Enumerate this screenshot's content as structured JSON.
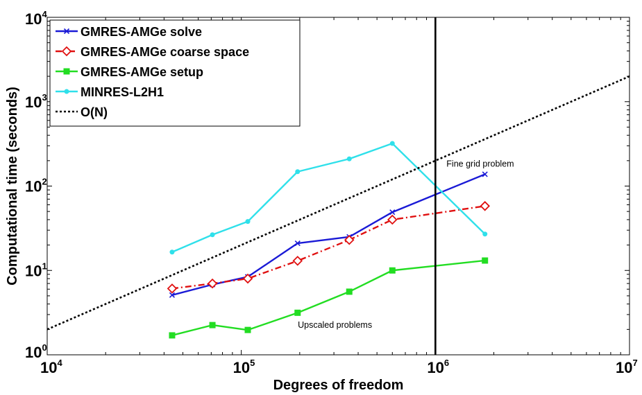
{
  "chart_data": {
    "type": "line",
    "xscale": "log",
    "yscale": "log",
    "xlim": [
      10000,
      10000000
    ],
    "ylim": [
      1,
      10000
    ],
    "xlabel": "Degrees of freedom",
    "ylabel": "Computational time (seconds)",
    "grid": false,
    "legend_position": "top-left",
    "x_ticks": [
      {
        "base": "10",
        "exp": "4",
        "value": 10000
      },
      {
        "base": "10",
        "exp": "5",
        "value": 100000
      },
      {
        "base": "10",
        "exp": "6",
        "value": 1000000
      },
      {
        "base": "10",
        "exp": "7",
        "value": 10000000
      }
    ],
    "y_ticks": [
      {
        "base": "10",
        "exp": "0",
        "value": 1
      },
      {
        "base": "10",
        "exp": "1",
        "value": 10
      },
      {
        "base": "10",
        "exp": "2",
        "value": 100
      },
      {
        "base": "10",
        "exp": "3",
        "value": 1000
      },
      {
        "base": "10",
        "exp": "4",
        "value": 10000
      }
    ],
    "series": [
      {
        "name": "GMRES-AMGe solve",
        "color": "#1a1ad6",
        "marker": "x",
        "dash": "solid",
        "x": [
          44000,
          71000,
          108000,
          195000,
          360000,
          600000,
          1800000
        ],
        "y": [
          5.1,
          6.8,
          8.4,
          21,
          25,
          49,
          138
        ]
      },
      {
        "name": "GMRES-AMGe coarse space",
        "color": "#e01010",
        "marker": "diamond",
        "dash": "dashdot",
        "x": [
          44000,
          71000,
          108000,
          195000,
          360000,
          600000,
          1800000
        ],
        "y": [
          6.1,
          7.0,
          8.0,
          13,
          23,
          40,
          58
        ]
      },
      {
        "name": "GMRES-AMGe setup",
        "color": "#22dd22",
        "marker": "square",
        "dash": "solid",
        "x": [
          44000,
          71000,
          108000,
          195000,
          360000,
          600000,
          1800000
        ],
        "y": [
          1.7,
          2.25,
          1.97,
          3.15,
          5.6,
          10,
          13.1
        ]
      },
      {
        "name": "MINRES-L2H1",
        "color": "#2fe0ea",
        "marker": "dot",
        "dash": "solid",
        "x": [
          44000,
          71000,
          108000,
          195000,
          360000,
          600000,
          1800000
        ],
        "y": [
          16.5,
          26.5,
          38,
          148,
          210,
          320,
          27
        ]
      },
      {
        "name": "O(N)",
        "color": "#000000",
        "marker": "none",
        "dash": "dotted",
        "x": [
          10000,
          10000000
        ],
        "y": [
          2,
          2000
        ]
      }
    ],
    "vertical_line": {
      "x": 1000000,
      "color": "#000000"
    },
    "annotations": [
      {
        "text": "Fine grid problem",
        "x": 1750000,
        "y": 170
      },
      {
        "text": "Upscaled problems",
        "x": 300000,
        "y": 2.1
      }
    ]
  }
}
